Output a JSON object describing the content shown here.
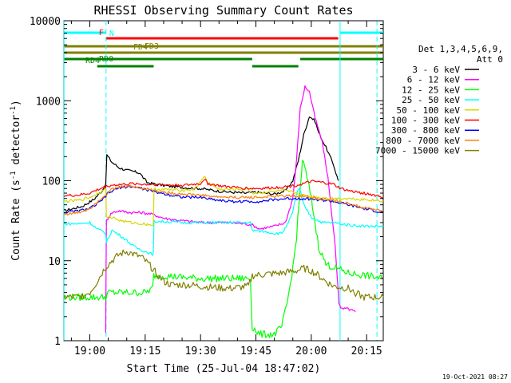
{
  "chart_data": {
    "type": "line",
    "title": "RHESSI Observing Summary Count Rates",
    "xlabel": "Start Time (25-Jul-04 18:47:02)",
    "ylabel_main": "Count Rate (s",
    "ylabel_sup1": "-1",
    "ylabel_mid": " detector",
    "ylabel_sup2": "-1",
    "ylabel_end": ")",
    "yscale": "log",
    "ylim": [
      1,
      10000
    ],
    "xlim_minutes": [
      -7.03,
      79.5
    ],
    "x_ticks": [
      {
        "label": "19:00",
        "min": 0
      },
      {
        "label": "19:15",
        "min": 15
      },
      {
        "label": "19:30",
        "min": 30
      },
      {
        "label": "19:45",
        "min": 45
      },
      {
        "label": "20:00",
        "min": 60
      },
      {
        "label": "20:15",
        "min": 75
      }
    ],
    "y_ticks": [
      {
        "label": "1",
        "v": 1
      },
      {
        "label": "10",
        "v": 10
      },
      {
        "label": "100",
        "v": 100
      },
      {
        "label": "1000",
        "v": 1000
      },
      {
        "label": "10000",
        "v": 10000
      }
    ],
    "legend": {
      "header1": "Det 1,3,4,5,6,9,",
      "header2": "Att 0",
      "entries": [
        {
          "label": "3 - 6 keV",
          "color": "#000000"
        },
        {
          "label": "6 - 12 keV",
          "color": "#ff00ff"
        },
        {
          "label": "12 - 25 keV",
          "color": "#00ff00"
        },
        {
          "label": "25 - 50 keV",
          "color": "#00ffff"
        },
        {
          "label": "50 - 100 keV",
          "color": "#d8d800"
        },
        {
          "label": "100 - 300 keV",
          "color": "#ff0000"
        },
        {
          "label": "300 - 800 keV",
          "color": "#0000ff"
        },
        {
          "label": "800 - 7000 keV",
          "color": "#ff8000"
        },
        {
          "label": "7000 - 15000 keV",
          "color": "#808000"
        }
      ]
    },
    "flags": [
      {
        "label": "N",
        "color": "#00ffff",
        "segments": [
          [
            -7.03,
            4.4
          ],
          [
            67.8,
            79.5
          ]
        ]
      },
      {
        "label": "F",
        "color": "#ff0000",
        "segments": [
          [
            4.4,
            67.3
          ]
        ]
      },
      {
        "label": "FD3",
        "color": "#808000",
        "segments": [
          [
            -7.03,
            79.5
          ]
        ]
      },
      {
        "label": "FD4",
        "color": "#808000",
        "segments": [
          [
            -7.03,
            79.5
          ]
        ]
      },
      {
        "label": "RD0",
        "color": "#008000",
        "segments": [
          [
            -7.03,
            44
          ],
          [
            57,
            79.5
          ]
        ]
      },
      {
        "label": "RD4",
        "color": "#008000",
        "segments": [
          [
            2,
            17.3
          ],
          [
            44,
            56.5
          ]
        ]
      }
    ],
    "verticals": [
      {
        "min": -7.0,
        "style": "solid"
      },
      {
        "min": 4.4,
        "style": "dashed"
      },
      {
        "min": 67.8,
        "style": "solid"
      },
      {
        "min": 77.8,
        "style": "dashed"
      }
    ],
    "series": [
      {
        "name": "3 - 6 keV",
        "color": "#000000",
        "points": [
          [
            -7,
            42
          ],
          [
            -2,
            48
          ],
          [
            1,
            58
          ],
          [
            3,
            72
          ],
          [
            4.3,
            88
          ],
          [
            4.6,
            210
          ],
          [
            6,
            170
          ],
          [
            8,
            145
          ],
          [
            10,
            135
          ],
          [
            12,
            130
          ],
          [
            13.5,
            125
          ],
          [
            15.5,
            95
          ],
          [
            18,
            90
          ],
          [
            22,
            85
          ],
          [
            26,
            82
          ],
          [
            30,
            80
          ],
          [
            34,
            75
          ],
          [
            38,
            72
          ],
          [
            42,
            70
          ],
          [
            45,
            72
          ],
          [
            50,
            68
          ],
          [
            53,
            75
          ],
          [
            55,
            100
          ],
          [
            56.5,
            180
          ],
          [
            58,
            380
          ],
          [
            59.5,
            640
          ],
          [
            61,
            560
          ],
          [
            62,
            400
          ],
          [
            64,
            260
          ],
          [
            66,
            160
          ],
          [
            67.3,
            100
          ]
        ]
      },
      {
        "name": "6 - 12 keV",
        "color": "#ff00ff",
        "points": [
          [
            4.3,
            1.3
          ],
          [
            4.5,
            32
          ],
          [
            6,
            40
          ],
          [
            8,
            42
          ],
          [
            11,
            40
          ],
          [
            14,
            40
          ],
          [
            17,
            38
          ],
          [
            20,
            34
          ],
          [
            24,
            32
          ],
          [
            27,
            31
          ],
          [
            30,
            30
          ],
          [
            34,
            30
          ],
          [
            38,
            30
          ],
          [
            42,
            29
          ],
          [
            44,
            28
          ],
          [
            46,
            25
          ],
          [
            50,
            27
          ],
          [
            53,
            30
          ],
          [
            55,
            60
          ],
          [
            56,
            180
          ],
          [
            57,
            800
          ],
          [
            58.3,
            1500
          ],
          [
            59.5,
            1300
          ],
          [
            61,
            620
          ],
          [
            63,
            300
          ],
          [
            64.5,
            110
          ],
          [
            65.5,
            40
          ],
          [
            66.5,
            15
          ],
          [
            67.5,
            3
          ],
          [
            68,
            2.5
          ],
          [
            70,
            2.5
          ],
          [
            72,
            2.3
          ]
        ]
      },
      {
        "name": "12 - 25 keV",
        "color": "#00ff00",
        "points": [
          [
            -7,
            3.5
          ],
          [
            0,
            3.5
          ],
          [
            4.3,
            3.5
          ],
          [
            5,
            4
          ],
          [
            10,
            4
          ],
          [
            15,
            4
          ],
          [
            17,
            4.5
          ],
          [
            17.3,
            6.5
          ],
          [
            20,
            6.5
          ],
          [
            25,
            6.2
          ],
          [
            30,
            6
          ],
          [
            35,
            6
          ],
          [
            40,
            6
          ],
          [
            43.5,
            6
          ],
          [
            44,
            1.5
          ],
          [
            46,
            1.2
          ],
          [
            50,
            1.2
          ],
          [
            52,
            1.5
          ],
          [
            53.5,
            3
          ],
          [
            55,
            8
          ],
          [
            56,
            20
          ],
          [
            57,
            80
          ],
          [
            57.6,
            180
          ],
          [
            58.5,
            130
          ],
          [
            60,
            60
          ],
          [
            61,
            30
          ],
          [
            62,
            15
          ],
          [
            64,
            9
          ],
          [
            67,
            8
          ],
          [
            70,
            7
          ],
          [
            75,
            6.5
          ],
          [
            79.5,
            6
          ]
        ]
      },
      {
        "name": "25 - 50 keV",
        "color": "#00ffff",
        "points": [
          [
            -7,
            29
          ],
          [
            -3,
            29
          ],
          [
            0,
            30
          ],
          [
            2,
            25
          ],
          [
            4.3,
            22
          ],
          [
            4.5,
            17
          ],
          [
            6,
            24
          ],
          [
            8,
            21
          ],
          [
            10,
            18
          ],
          [
            12,
            15
          ],
          [
            15,
            13
          ],
          [
            17.2,
            12
          ],
          [
            17.4,
            31
          ],
          [
            20,
            31
          ],
          [
            25,
            30
          ],
          [
            30,
            30
          ],
          [
            35,
            30
          ],
          [
            40,
            30
          ],
          [
            43.5,
            30
          ],
          [
            44,
            24
          ],
          [
            48,
            23
          ],
          [
            50,
            22
          ],
          [
            52,
            22
          ],
          [
            53.5,
            28
          ],
          [
            55,
            40
          ],
          [
            56,
            70
          ],
          [
            56.8,
            80
          ],
          [
            58,
            50
          ],
          [
            60,
            35
          ],
          [
            63,
            30
          ],
          [
            66,
            30
          ],
          [
            70,
            28
          ],
          [
            75,
            27
          ],
          [
            79.5,
            27
          ]
        ]
      },
      {
        "name": "50 - 100 keV",
        "color": "#d8d800",
        "points": [
          [
            -7,
            55
          ],
          [
            -3,
            57
          ],
          [
            0,
            62
          ],
          [
            3,
            72
          ],
          [
            4.3,
            85
          ],
          [
            4.5,
            35
          ],
          [
            6,
            35
          ],
          [
            8,
            32
          ],
          [
            11,
            30
          ],
          [
            14,
            29
          ],
          [
            17.2,
            28
          ],
          [
            17.4,
            78
          ],
          [
            20,
            78
          ],
          [
            24,
            76
          ],
          [
            28,
            78
          ],
          [
            30,
            95
          ],
          [
            31,
            115
          ],
          [
            32,
            95
          ],
          [
            35,
            78
          ],
          [
            40,
            78
          ],
          [
            43,
            78
          ],
          [
            44,
            70
          ],
          [
            48,
            72
          ],
          [
            52,
            75
          ],
          [
            55,
            72
          ],
          [
            58,
            65
          ],
          [
            62,
            62
          ],
          [
            66,
            60
          ],
          [
            70,
            60
          ],
          [
            75,
            58
          ],
          [
            79.5,
            56
          ]
        ]
      },
      {
        "name": "100 - 300 keV",
        "color": "#ff0000",
        "points": [
          [
            -7,
            65
          ],
          [
            -3,
            66
          ],
          [
            0,
            70
          ],
          [
            3,
            80
          ],
          [
            4.5,
            85
          ],
          [
            6,
            88
          ],
          [
            9,
            90
          ],
          [
            12,
            92
          ],
          [
            15,
            90
          ],
          [
            18,
            90
          ],
          [
            22,
            88
          ],
          [
            26,
            88
          ],
          [
            30,
            92
          ],
          [
            31,
            105
          ],
          [
            32,
            92
          ],
          [
            36,
            85
          ],
          [
            40,
            82
          ],
          [
            44,
            80
          ],
          [
            46,
            80
          ],
          [
            50,
            82
          ],
          [
            54,
            85
          ],
          [
            56,
            88
          ],
          [
            58,
            92
          ],
          [
            60,
            98
          ],
          [
            63,
            95
          ],
          [
            66,
            90
          ],
          [
            68,
            80
          ],
          [
            70,
            75
          ],
          [
            74,
            70
          ],
          [
            78,
            65
          ],
          [
            79.5,
            62
          ]
        ]
      },
      {
        "name": "300 - 800 keV",
        "color": "#0000ff",
        "points": [
          [
            -7,
            40
          ],
          [
            -3,
            42
          ],
          [
            0,
            45
          ],
          [
            3,
            55
          ],
          [
            5,
            70
          ],
          [
            8,
            82
          ],
          [
            11,
            85
          ],
          [
            14,
            80
          ],
          [
            18,
            72
          ],
          [
            22,
            66
          ],
          [
            26,
            62
          ],
          [
            30,
            62
          ],
          [
            34,
            58
          ],
          [
            38,
            55
          ],
          [
            42,
            55
          ],
          [
            46,
            55
          ],
          [
            50,
            58
          ],
          [
            54,
            60
          ],
          [
            58,
            60
          ],
          [
            62,
            58
          ],
          [
            66,
            55
          ],
          [
            70,
            50
          ],
          [
            74,
            45
          ],
          [
            79.5,
            40
          ]
        ]
      },
      {
        "name": "800 - 7000 keV",
        "color": "#ff8000",
        "points": [
          [
            -7,
            38
          ],
          [
            -3,
            40
          ],
          [
            0,
            45
          ],
          [
            3,
            60
          ],
          [
            6,
            78
          ],
          [
            9,
            85
          ],
          [
            12,
            85
          ],
          [
            15,
            80
          ],
          [
            18,
            75
          ],
          [
            22,
            70
          ],
          [
            26,
            68
          ],
          [
            30,
            66
          ],
          [
            34,
            63
          ],
          [
            38,
            62
          ],
          [
            42,
            62
          ],
          [
            46,
            62
          ],
          [
            50,
            64
          ],
          [
            54,
            65
          ],
          [
            58,
            64
          ],
          [
            62,
            60
          ],
          [
            66,
            56
          ],
          [
            70,
            52
          ],
          [
            74,
            46
          ],
          [
            79.5,
            42
          ]
        ]
      },
      {
        "name": "7000 - 15000 keV",
        "color": "#808000",
        "points": [
          [
            -7,
            3.5
          ],
          [
            -3,
            3.5
          ],
          [
            0,
            4
          ],
          [
            2,
            5.5
          ],
          [
            4,
            8
          ],
          [
            6,
            10
          ],
          [
            8,
            12
          ],
          [
            10,
            13
          ],
          [
            12,
            12
          ],
          [
            14,
            11
          ],
          [
            16,
            9
          ],
          [
            18,
            7
          ],
          [
            20,
            5.5
          ],
          [
            22,
            5
          ],
          [
            26,
            5
          ],
          [
            30,
            4.8
          ],
          [
            34,
            4.6
          ],
          [
            38,
            4.5
          ],
          [
            40,
            4.6
          ],
          [
            43,
            4.8
          ],
          [
            44,
            6.5
          ],
          [
            48,
            6.8
          ],
          [
            52,
            7
          ],
          [
            56,
            7.5
          ],
          [
            58,
            8
          ],
          [
            60,
            7.5
          ],
          [
            62,
            6.5
          ],
          [
            64,
            5.5
          ],
          [
            66,
            4.8
          ],
          [
            70,
            4.5
          ],
          [
            74,
            3.5
          ],
          [
            79.5,
            3.5
          ]
        ]
      }
    ],
    "footer_date": "19-Oct-2021 08:27"
  }
}
